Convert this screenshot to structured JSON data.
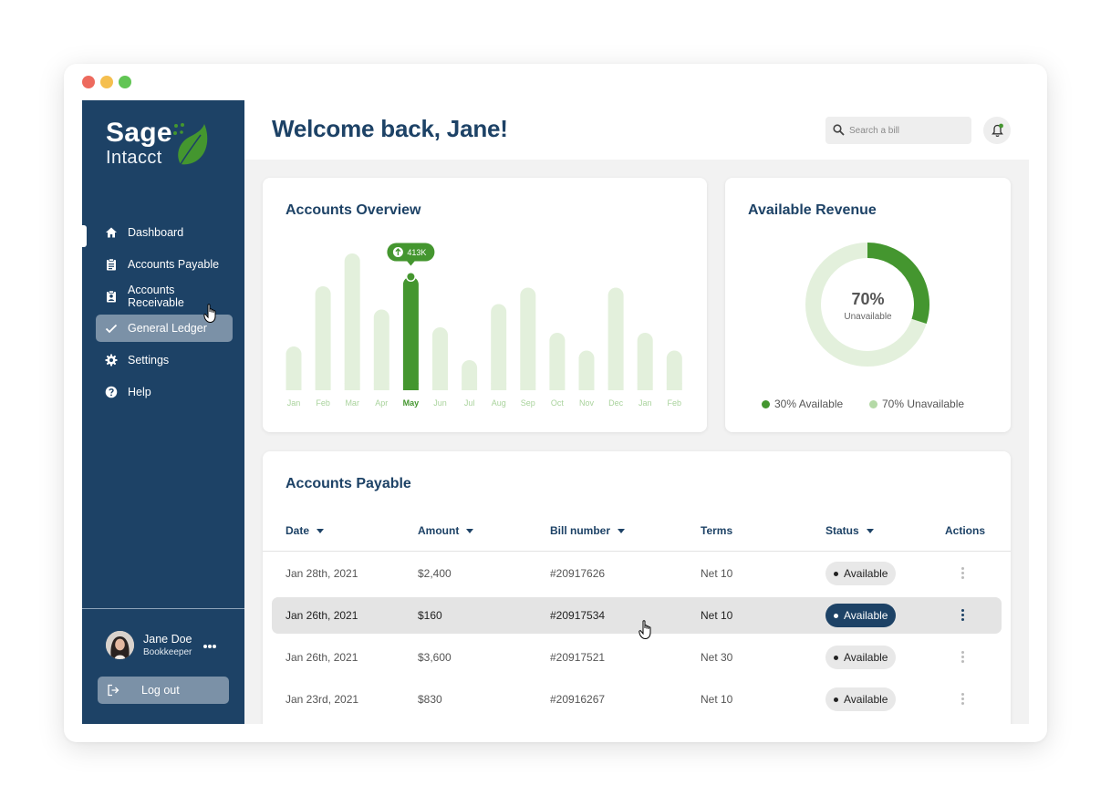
{
  "window": {
    "dot_colors": [
      "#ed6a5e",
      "#f5bf4f",
      "#61c554"
    ]
  },
  "logo": {
    "name": "Sage",
    "sub": "Intacct"
  },
  "sidebar": {
    "items": [
      {
        "label": "Dashboard",
        "icon": "home-icon"
      },
      {
        "label": "Accounts Payable",
        "icon": "clipboard-icon"
      },
      {
        "label": "Accounts Receivable",
        "icon": "contact-icon"
      },
      {
        "label": "General Ledger",
        "icon": "check-icon",
        "selected": true
      },
      {
        "label": "Settings",
        "icon": "gear-icon"
      },
      {
        "label": "Help",
        "icon": "help-icon"
      }
    ],
    "user": {
      "name": "Jane Doe",
      "role": "Bookkeeper"
    },
    "logout_label": "Log out"
  },
  "header": {
    "welcome": "Welcome back, Jane!",
    "search_placeholder": "Search a bill"
  },
  "overview": {
    "title": "Accounts Overview",
    "tooltip": "413K"
  },
  "revenue": {
    "title": "Available Revenue",
    "center_value": "70%",
    "center_label": "Unavailable",
    "legend": [
      {
        "label": "30% Available",
        "color": "#44962f"
      },
      {
        "label": "70% Unavailable",
        "color": "#b4d9a6"
      }
    ]
  },
  "payable": {
    "title": "Accounts Payable",
    "columns": [
      {
        "label": "Date",
        "sortable": true
      },
      {
        "label": "Amount",
        "sortable": true
      },
      {
        "label": "Bill number",
        "sortable": true
      },
      {
        "label": "Terms",
        "sortable": false
      },
      {
        "label": "Status",
        "sortable": true
      },
      {
        "label": "Actions",
        "sortable": false
      }
    ],
    "rows": [
      {
        "date": "Jan 28th, 2021",
        "amount": "$2,400",
        "bill": "#20917626",
        "terms": "Net 10",
        "status": "Available"
      },
      {
        "date": "Jan 26th, 2021",
        "amount": "$160",
        "bill": "#20917534",
        "terms": "Net 10",
        "status": "Available",
        "highlighted": true
      },
      {
        "date": "Jan 26th, 2021",
        "amount": "$3,600",
        "bill": "#20917521",
        "terms": "Net 30",
        "status": "Available"
      },
      {
        "date": "Jan 23rd, 2021",
        "amount": "$830",
        "bill": "#20916267",
        "terms": "Net 10",
        "status": "Available"
      }
    ]
  },
  "chart_data": [
    {
      "type": "bar",
      "title": "Accounts Overview",
      "categories": [
        "Jan",
        "Feb",
        "Mar",
        "Apr",
        "May",
        "Jun",
        "Jul",
        "Aug",
        "Sep",
        "Oct",
        "Nov",
        "Dec",
        "Jan",
        "Feb"
      ],
      "values": [
        0.32,
        0.76,
        1.0,
        0.59,
        0.83,
        0.46,
        0.22,
        0.63,
        0.75,
        0.42,
        0.29,
        0.75,
        0.42,
        0.29
      ],
      "highlight_index": 4,
      "highlight_label": "413K",
      "bar_color": "#e3f0dc",
      "highlight_color": "#44962f",
      "grid": false
    },
    {
      "type": "pie",
      "title": "Available Revenue",
      "donut": true,
      "categories": [
        "Available",
        "Unavailable"
      ],
      "values": [
        30,
        70
      ],
      "colors": [
        "#44962f",
        "#e3f0dc"
      ]
    }
  ]
}
